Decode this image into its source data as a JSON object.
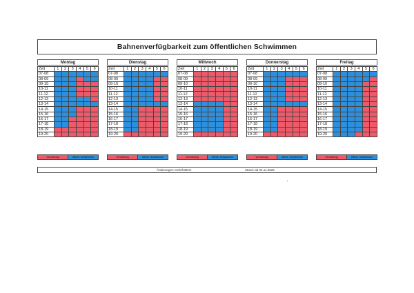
{
  "title": "Bahnenverfügbarkeit zum öffentlichen Schwimmen",
  "time_header": "Zeit",
  "lanes": [
    "1",
    "2",
    "3",
    "4",
    "5",
    "6"
  ],
  "times": [
    "07-08",
    "08-09",
    "09-10",
    "10-11",
    "11-12",
    "12-13",
    "13-14",
    "14-15",
    "15-16",
    "16-17",
    "17-18",
    "18-19",
    "19-20"
  ],
  "legend": {
    "rent": "Vermietung",
    "public": "öffentl. Schwimmen"
  },
  "colors": {
    "rent": "#ef5a6a",
    "public": "#2e8fdc"
  },
  "days": [
    {
      "name": "Montag",
      "grid": [
        "BBBBBB",
        "BBBRBB",
        "BBBRRR",
        "BBBRRR",
        "BBBRRR",
        "BBBBBR",
        "BBBBBB",
        "BBBRRR",
        "BBBRRR",
        "BBRRRR",
        "BBRRRR",
        "RRRRRR",
        "RRRRRR"
      ]
    },
    {
      "name": "Dienstag",
      "grid": [
        "BBBBBB",
        "BBBBRR",
        "BBBBRR",
        "BBBBRR",
        "BBBBRR",
        "BBBBRR",
        "BBBBBB",
        "BBRRRR",
        "BBRRRR",
        "BBRRRR",
        "BBRRRR",
        "BBRRRR",
        "RRRRRR"
      ]
    },
    {
      "name": "Mittwoch",
      "grid": [
        "RRRRRR",
        "RRRRRR",
        "RRRRRR",
        "RRRRRR",
        "RRRRRR",
        "RRRRRR",
        "BBBBRR",
        "BBBBRR",
        "BBBBRR",
        "BBBBRR",
        "BBBBRR",
        "BBBBRR",
        "RRRRRR"
      ]
    },
    {
      "name": "Donnerstag",
      "grid": [
        "BBBBBB",
        "BBBRRR",
        "BBBRRR",
        "BBBRRR",
        "BBBRRR",
        "BBBRRR",
        "BBBBBB",
        "BBRRRR",
        "BBRRRR",
        "BBRRRR",
        "BBRRRR",
        "BBRRRR",
        "RRRRRR"
      ]
    },
    {
      "name": "Freitag",
      "grid": [
        "BBBBBB",
        "BBBBBR",
        "BBBBRR",
        "BBBBRR",
        "BBBBRR",
        "BBBBRR",
        "BBBBRR",
        "BBBBRR",
        "BBBBRR",
        "BBBBRR",
        "BBBBRR",
        "BBBBRR",
        "BBBRRR"
      ]
    }
  ],
  "footer": {
    "note": "Änderungen vorbehalten!",
    "date": "Stand: ab 04.11.2025"
  }
}
